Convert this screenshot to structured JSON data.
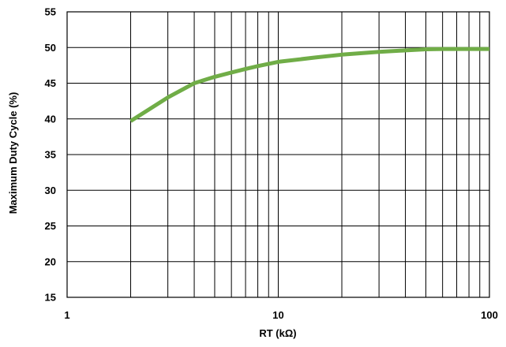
{
  "chart_data": {
    "type": "line",
    "title": "",
    "xlabel": "RT (kΩ)",
    "ylabel": "Maximum Duty Cycle (%)",
    "xscale": "log",
    "xlim": [
      1,
      100
    ],
    "ylim": [
      15,
      55
    ],
    "x_tick_labels": [
      "1",
      "10",
      "100"
    ],
    "y_tick_labels": [
      "15",
      "20",
      "25",
      "30",
      "35",
      "40",
      "45",
      "50",
      "55"
    ],
    "grid": true,
    "line_color": "#70ad47",
    "series": [
      {
        "x": [
          2,
          3,
          4,
          5,
          6,
          7,
          8,
          10,
          15,
          20,
          30,
          40,
          50,
          60,
          70,
          80,
          100
        ],
        "y": [
          39.7,
          43.0,
          45.0,
          45.9,
          46.5,
          47.0,
          47.4,
          48.0,
          48.6,
          49.0,
          49.4,
          49.6,
          49.75,
          49.8,
          49.8,
          49.8,
          49.8
        ]
      }
    ]
  }
}
